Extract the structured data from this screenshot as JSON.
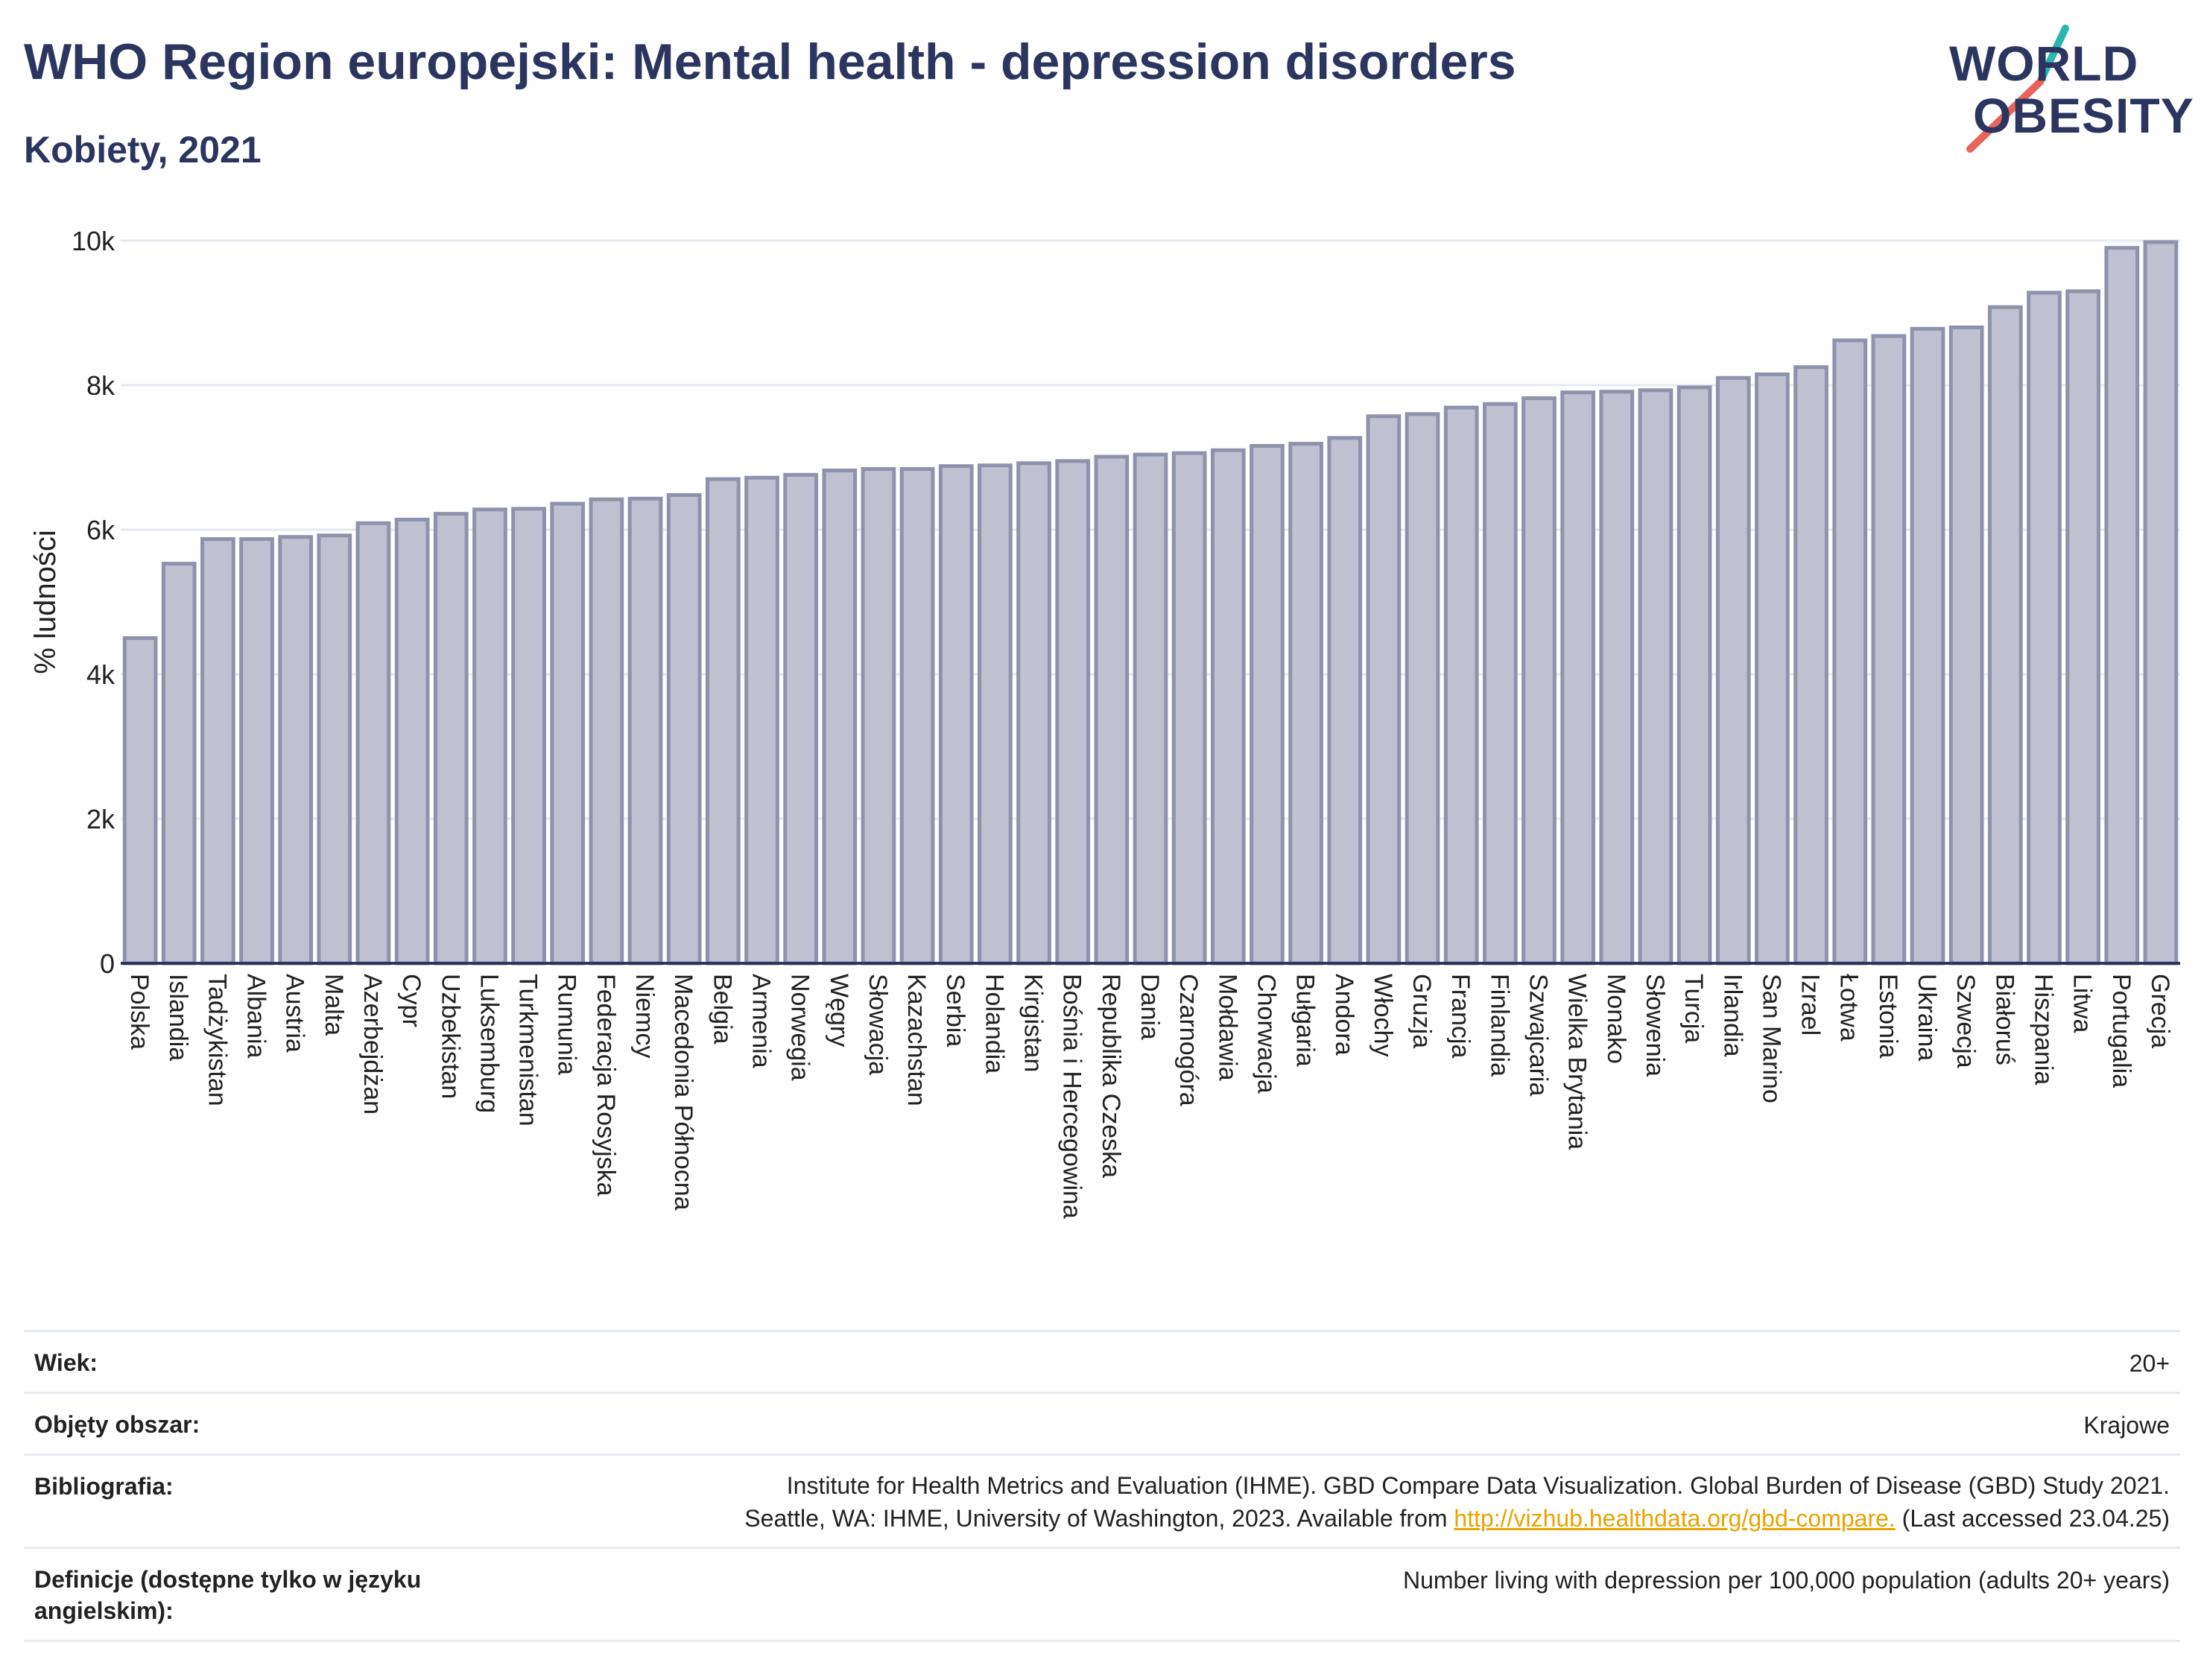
{
  "header": {
    "title": "WHO Region europejski: Mental health - depression disorders",
    "subtitle": "Kobiety, 2021"
  },
  "logo": {
    "line1": "WORLD",
    "line2": "OBESITY",
    "colors": {
      "text": "#2b3560",
      "slash_teal": "#2bb5b0",
      "slash_red": "#e8645a"
    }
  },
  "chart_data": {
    "type": "bar",
    "ylabel": "% ludności",
    "ylim": [
      0,
      10000
    ],
    "yticks": [
      0,
      2000,
      4000,
      6000,
      8000,
      10000
    ],
    "ytick_labels": [
      "0",
      "2k",
      "4k",
      "6k",
      "8k",
      "10k"
    ],
    "grid": true,
    "bar_fill": "#bfc1d0",
    "bar_stroke": "#8e92ab",
    "categories": [
      "Polska",
      "Islandia",
      "Tadżykistan",
      "Albania",
      "Austria",
      "Malta",
      "Azerbejdżan",
      "Cypr",
      "Uzbekistan",
      "Luksemburg",
      "Turkmenistan",
      "Rumunia",
      "Federacja Rosyjska",
      "Niemcy",
      "Macedonia Północna",
      "Belgia",
      "Armenia",
      "Norwegia",
      "Węgry",
      "Słowacja",
      "Kazachstan",
      "Serbia",
      "Holandia",
      "Kirgistan",
      "Bośnia i Hercegowina",
      "Republika Czeska",
      "Dania",
      "Czarnogóra",
      "Mołdawia",
      "Chorwacja",
      "Bułgaria",
      "Andora",
      "Włochy",
      "Gruzja",
      "Francja",
      "Finlandia",
      "Szwajcaria",
      "Wielka Brytania",
      "Monako",
      "Słowenia",
      "Turcja",
      "Irlandia",
      "San Marino",
      "Izrael",
      "Łotwa",
      "Estonia",
      "Ukraina",
      "Szwecja",
      "Białoruś",
      "Hiszpania",
      "Litwa",
      "Portugalia",
      "Grecja"
    ],
    "values": [
      4500,
      5530,
      5870,
      5870,
      5900,
      5920,
      6090,
      6140,
      6220,
      6280,
      6290,
      6360,
      6420,
      6430,
      6480,
      6700,
      6720,
      6760,
      6820,
      6840,
      6840,
      6880,
      6890,
      6920,
      6950,
      7010,
      7040,
      7060,
      7100,
      7160,
      7190,
      7270,
      7570,
      7600,
      7690,
      7740,
      7820,
      7900,
      7910,
      7930,
      7970,
      8100,
      8150,
      8250,
      8620,
      8680,
      8780,
      8800,
      9080,
      9280,
      9300,
      9900,
      9980
    ]
  },
  "meta": {
    "age": {
      "label": "Wiek:",
      "value": "20+"
    },
    "coverage": {
      "label": "Objęty obszar:",
      "value": "Krajowe"
    },
    "bibliography": {
      "label": "Bibliografia:",
      "line1": "Institute for Health Metrics and Evaluation (IHME). GBD Compare Data Visualization. Global Burden of Disease (GBD) Study 2021.",
      "line2_pre": "Seattle, WA: IHME, University of Washington, 2023. Available from ",
      "link": "http://vizhub.healthdata.org/gbd-compare.",
      "line2_post": " (Last accessed 23.04.25)"
    },
    "definitions": {
      "label": "Definicje (dostępne tylko w języku angielskim):",
      "value": "Number living with depression per 100,000 population (adults 20+ years)"
    }
  }
}
